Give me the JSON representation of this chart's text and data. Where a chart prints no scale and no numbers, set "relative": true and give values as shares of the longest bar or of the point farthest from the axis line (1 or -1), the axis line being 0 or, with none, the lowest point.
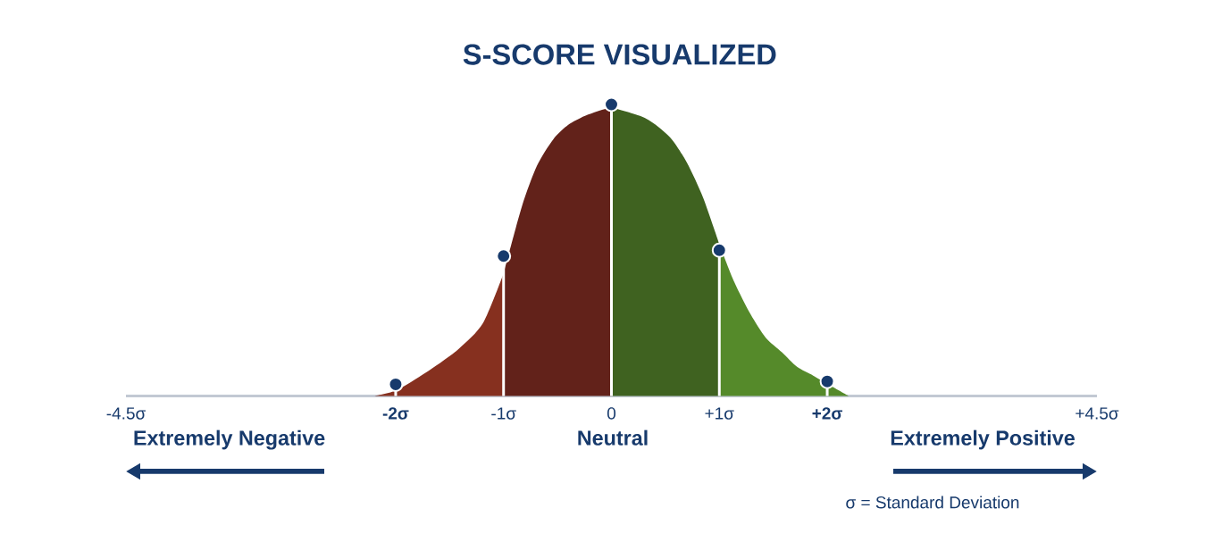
{
  "chart_data": {
    "type": "area",
    "title": "S-SCORE VISUALIZED",
    "relative": true,
    "xlim": [
      -4.5,
      4.5
    ],
    "xticks": [
      {
        "value": -4.5,
        "label": "-4.5σ"
      },
      {
        "value": -2,
        "label": "**-2σ**"
      },
      {
        "value": -1,
        "label": "-1σ"
      },
      0,
      {
        "value": 1,
        "label": "+1σ"
      },
      {
        "value": 2,
        "label": "**+2σ**"
      },
      {
        "value": 4.5,
        "label": "+4.5σ"
      }
    ],
    "tick_labels": "x",
    "series": [
      {
        "color": "#86301f",
        "x": [
          -2.2,
          -1.99,
          -1.72,
          -1.42,
          -1.19,
          -1.0
        ],
        "values": [
          0,
          0.02,
          0.08,
          0.16,
          0.25,
          0.42
        ]
      },
      {
        "color": "#62221a",
        "x": [
          -1.0,
          -0.83,
          -0.69,
          -0.54,
          -0.4,
          -0.25,
          -0.1,
          0
        ],
        "values": [
          0.42,
          0.65,
          0.79,
          0.88,
          0.93,
          0.96,
          0.98,
          0.99
        ]
      },
      {
        "color": "#3f6220",
        "x": [
          0,
          0.27,
          0.41,
          0.56,
          0.7,
          0.85,
          1.0
        ],
        "values": [
          0.99,
          0.96,
          0.93,
          0.88,
          0.8,
          0.68,
          0.52
        ]
      },
      {
        "color": "#558a2a",
        "x": [
          1.0,
          1.14,
          1.29,
          1.43,
          1.58,
          1.72,
          1.87,
          2.01,
          2.2
        ],
        "values": [
          0.52,
          0.39,
          0.28,
          0.2,
          0.15,
          0.1,
          0.07,
          0.04,
          0
        ]
      },
      {
        "type": "lollipop",
        "marker": "circle",
        "color": "#173a6c",
        "x": [
          -2,
          -1,
          0,
          1,
          2
        ],
        "values": [
          0.04,
          0.48,
          1,
          0.5,
          0.05
        ]
      }
    ],
    "annotations": [
      "Extremely Negative",
      "Neutral",
      "Extremely Positive",
      "σ = Standard Deviation"
    ]
  }
}
